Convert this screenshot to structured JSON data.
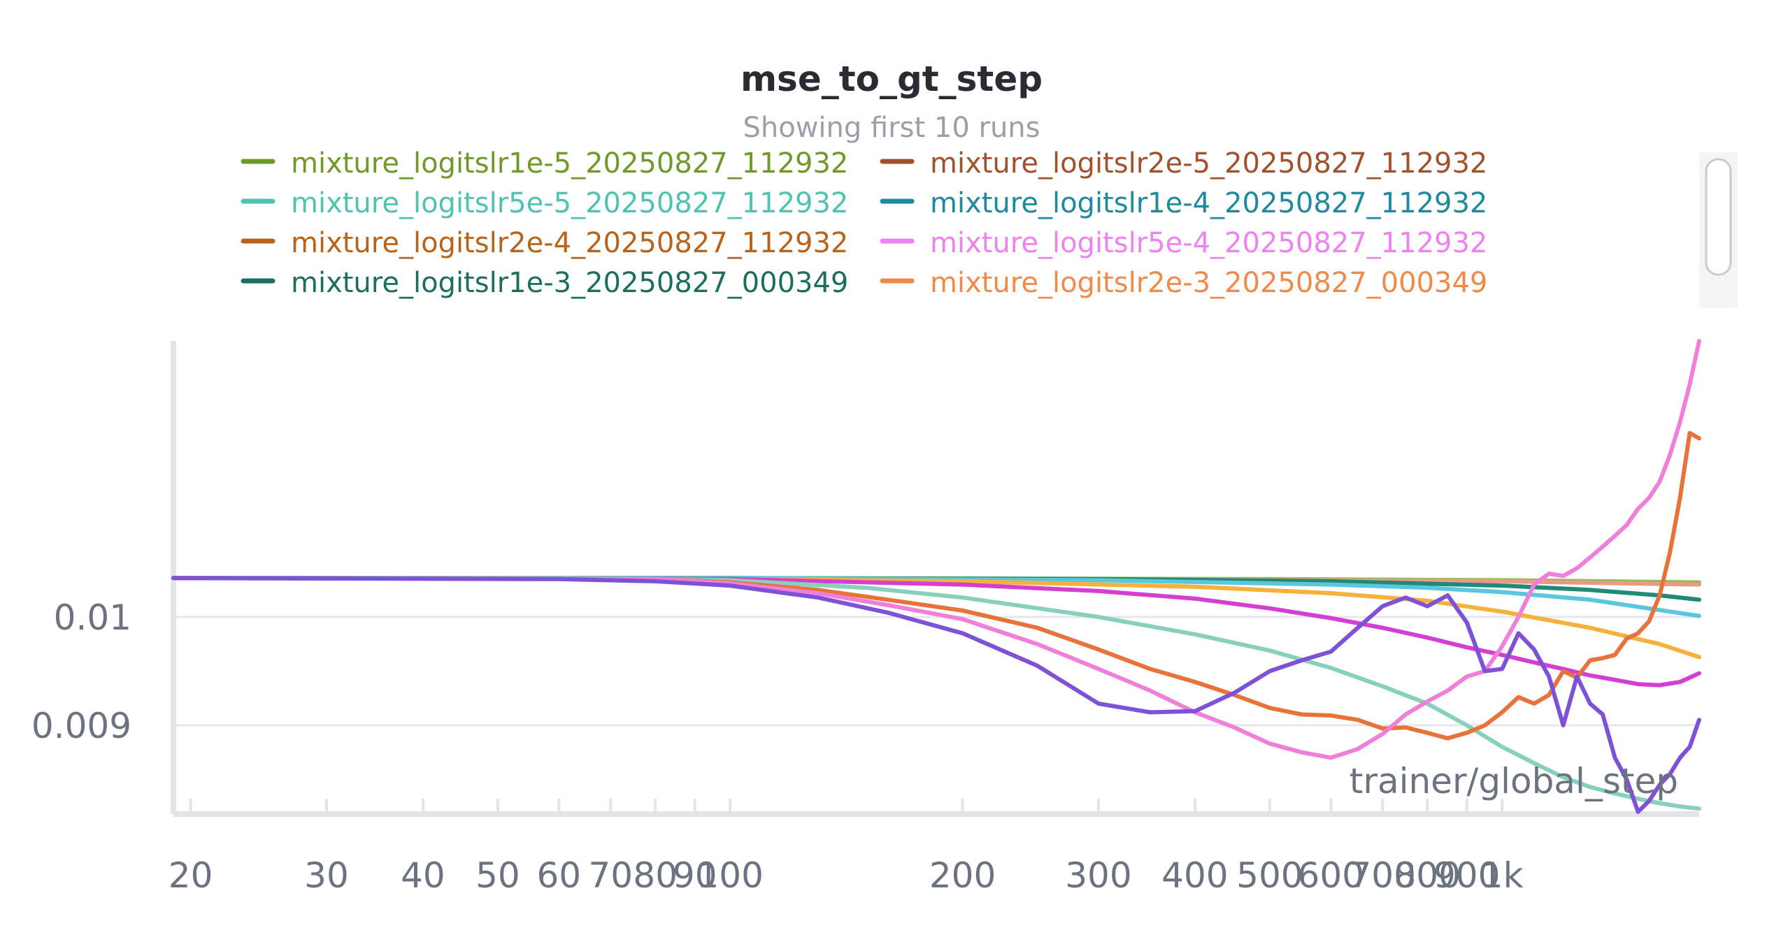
{
  "chart_data": {
    "type": "line",
    "title": "mse_to_gt_step",
    "subtitle": "Showing first 10 runs",
    "xlabel": "trainer/global_step",
    "ylabel": "",
    "x_scale": "log",
    "xlim": [
      19,
      1800
    ],
    "ylim": [
      0.00818,
      0.01255
    ],
    "grid": true,
    "legend_position": "top-center",
    "x_ticks": [
      {
        "value": 20,
        "label": "20"
      },
      {
        "value": 30,
        "label": "30"
      },
      {
        "value": 40,
        "label": "40"
      },
      {
        "value": 50,
        "label": "50"
      },
      {
        "value": 60,
        "label": "60"
      },
      {
        "value": 70,
        "label": "70"
      },
      {
        "value": 80,
        "label": "80"
      },
      {
        "value": 90,
        "label": "90"
      },
      {
        "value": 100,
        "label": "100"
      },
      {
        "value": 200,
        "label": "200"
      },
      {
        "value": 300,
        "label": "300"
      },
      {
        "value": 400,
        "label": "400"
      },
      {
        "value": 500,
        "label": "500"
      },
      {
        "value": 600,
        "label": "600"
      },
      {
        "value": 700,
        "label": "700"
      },
      {
        "value": 800,
        "label": "800"
      },
      {
        "value": 900,
        "label": "900"
      },
      {
        "value": 1000,
        "label": "1k"
      }
    ],
    "y_ticks": [
      {
        "value": 0.01,
        "label": "0.01"
      },
      {
        "value": 0.009,
        "label": "0.009"
      }
    ],
    "legend": [
      {
        "name": "mixture_logitslr1e-5_20250827_112932",
        "color": "#6f9a2a"
      },
      {
        "name": "mixture_logitslr2e-5_20250827_112932",
        "color": "#a0522d"
      },
      {
        "name": "mixture_logitslr5e-5_20250827_112932",
        "color": "#4fc3b0"
      },
      {
        "name": "mixture_logitslr1e-4_20250827_112932",
        "color": "#1f8a9e"
      },
      {
        "name": "mixture_logitslr2e-4_20250827_112932",
        "color": "#b8631a"
      },
      {
        "name": "mixture_logitslr5e-4_20250827_112932",
        "color": "#ee82ee"
      },
      {
        "name": "mixture_logitslr1e-3_20250827_000349",
        "color": "#1c6e5e"
      },
      {
        "name": "mixture_logitslr2e-3_20250827_000349",
        "color": "#f08a4b"
      }
    ],
    "series": [
      {
        "color": "#8fbf4f",
        "x": [
          19,
          100,
          500,
          1000,
          1800
        ],
        "y": [
          0.01036,
          0.01036,
          0.01035,
          0.01034,
          0.01032
        ]
      },
      {
        "color": "#e89a86",
        "x": [
          19,
          100,
          500,
          1000,
          1800
        ],
        "y": [
          0.01036,
          0.01036,
          0.01034,
          0.01033,
          0.0103
        ]
      },
      {
        "color": "#1f8a78",
        "x": [
          19,
          100,
          300,
          600,
          1000,
          1300,
          1600,
          1800
        ],
        "y": [
          0.01036,
          0.01036,
          0.01035,
          0.01033,
          0.01029,
          0.01025,
          0.0102,
          0.01016
        ]
      },
      {
        "color": "#5bc6dc",
        "x": [
          19,
          100,
          300,
          600,
          800,
          1000,
          1300,
          1800
        ],
        "y": [
          0.01036,
          0.01036,
          0.01034,
          0.0103,
          0.01027,
          0.01023,
          0.01016,
          0.01001
        ]
      },
      {
        "color": "#f6b13c",
        "x": [
          19,
          100,
          200,
          400,
          600,
          800,
          1000,
          1300,
          1600,
          1800
        ],
        "y": [
          0.01036,
          0.01035,
          0.01033,
          0.01028,
          0.01022,
          0.01015,
          0.01005,
          0.0099,
          0.00975,
          0.00963
        ]
      },
      {
        "color": "#d43ed1",
        "x": [
          19,
          100,
          200,
          300,
          400,
          500,
          600,
          700,
          800,
          900,
          1000,
          1100,
          1200,
          1300,
          1400,
          1500,
          1600,
          1700,
          1800
        ],
        "y": [
          0.01036,
          0.01035,
          0.0103,
          0.01024,
          0.01017,
          0.01008,
          0.00999,
          0.0099,
          0.00981,
          0.00972,
          0.00965,
          0.00958,
          0.00952,
          0.00946,
          0.00942,
          0.00938,
          0.00937,
          0.0094,
          0.00948
        ]
      },
      {
        "color": "#86d0bd",
        "x": [
          19,
          60,
          100,
          150,
          200,
          300,
          400,
          500,
          600,
          700,
          800,
          900,
          1000,
          1100,
          1200,
          1300,
          1400,
          1500,
          1600,
          1700,
          1800
        ],
        "y": [
          0.01036,
          0.01036,
          0.01034,
          0.01027,
          0.01018,
          0.01,
          0.00984,
          0.00969,
          0.00953,
          0.00936,
          0.0092,
          0.009,
          0.0088,
          0.00865,
          0.00852,
          0.00843,
          0.00837,
          0.00832,
          0.00828,
          0.00825,
          0.00823
        ]
      },
      {
        "color": "#e8733a",
        "x": [
          19,
          80,
          100,
          130,
          160,
          200,
          250,
          300,
          350,
          400,
          450,
          500,
          550,
          600,
          650,
          700,
          750,
          800,
          850,
          900,
          950,
          1000,
          1050,
          1100,
          1150,
          1200,
          1250,
          1300,
          1350,
          1400,
          1450,
          1500,
          1550,
          1600,
          1650,
          1700,
          1750,
          1800
        ],
        "y": [
          0.01036,
          0.01035,
          0.01032,
          0.01025,
          0.01016,
          0.01006,
          0.0099,
          0.0097,
          0.00952,
          0.0094,
          0.00928,
          0.00916,
          0.0091,
          0.00909,
          0.00905,
          0.00897,
          0.00898,
          0.00893,
          0.00888,
          0.00893,
          0.009,
          0.00912,
          0.00926,
          0.0092,
          0.00928,
          0.0095,
          0.00944,
          0.0096,
          0.00962,
          0.00965,
          0.0098,
          0.00985,
          0.00996,
          0.0102,
          0.0106,
          0.0111,
          0.0117,
          0.01165
        ]
      },
      {
        "color": "#ef7fd8",
        "x": [
          19,
          80,
          100,
          130,
          160,
          200,
          250,
          300,
          350,
          400,
          450,
          500,
          550,
          600,
          650,
          700,
          750,
          800,
          850,
          900,
          950,
          1000,
          1050,
          1100,
          1150,
          1200,
          1250,
          1300,
          1350,
          1400,
          1450,
          1500,
          1550,
          1600,
          1650,
          1700,
          1750,
          1800
        ],
        "y": [
          0.01036,
          0.01035,
          0.01031,
          0.01022,
          0.01011,
          0.00998,
          0.00975,
          0.00952,
          0.00932,
          0.00912,
          0.00898,
          0.00883,
          0.00875,
          0.0087,
          0.00878,
          0.00892,
          0.0091,
          0.00922,
          0.00932,
          0.00945,
          0.0095,
          0.00973,
          0.01,
          0.0103,
          0.0104,
          0.01038,
          0.01045,
          0.01055,
          0.01065,
          0.01075,
          0.01085,
          0.011,
          0.0111,
          0.01125,
          0.0115,
          0.0118,
          0.01215,
          0.01255
        ]
      },
      {
        "color": "#7e52d6",
        "x": [
          19,
          60,
          80,
          100,
          130,
          160,
          200,
          250,
          300,
          350,
          400,
          450,
          500,
          550,
          600,
          650,
          700,
          750,
          800,
          850,
          900,
          950,
          1000,
          1050,
          1100,
          1150,
          1200,
          1250,
          1300,
          1350,
          1400,
          1450,
          1500,
          1550,
          1600,
          1650,
          1700,
          1750,
          1800
        ],
        "y": [
          0.01036,
          0.01035,
          0.01033,
          0.01029,
          0.01018,
          0.01004,
          0.00985,
          0.00955,
          0.0092,
          0.00912,
          0.00913,
          0.0093,
          0.0095,
          0.0096,
          0.00968,
          0.0099,
          0.0101,
          0.01018,
          0.0101,
          0.0102,
          0.00995,
          0.0095,
          0.00952,
          0.00985,
          0.0097,
          0.00945,
          0.009,
          0.00945,
          0.0092,
          0.0091,
          0.0087,
          0.0085,
          0.0082,
          0.0083,
          0.00845,
          0.00855,
          0.0087,
          0.0088,
          0.00905
        ]
      }
    ]
  }
}
